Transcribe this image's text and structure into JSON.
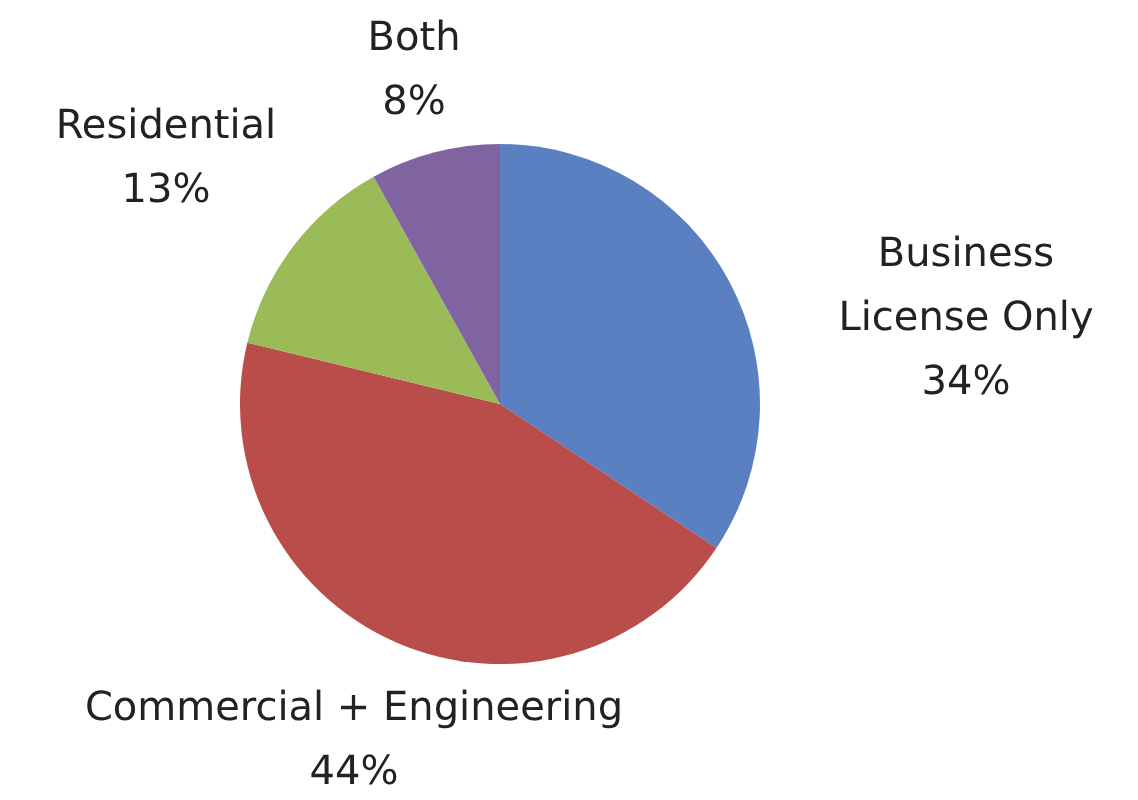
{
  "chart_data": {
    "type": "pie",
    "categories": [
      "Business License Only",
      "Commercial + Engineering",
      "Residential",
      "Both"
    ],
    "values": [
      34,
      44,
      13,
      8
    ],
    "value_labels": [
      "34%",
      "44%",
      "13%",
      "8%"
    ],
    "colors": [
      "#5b80c2",
      "#b84d4a",
      "#9bbb59",
      "#8064a2"
    ],
    "legend": false
  }
}
